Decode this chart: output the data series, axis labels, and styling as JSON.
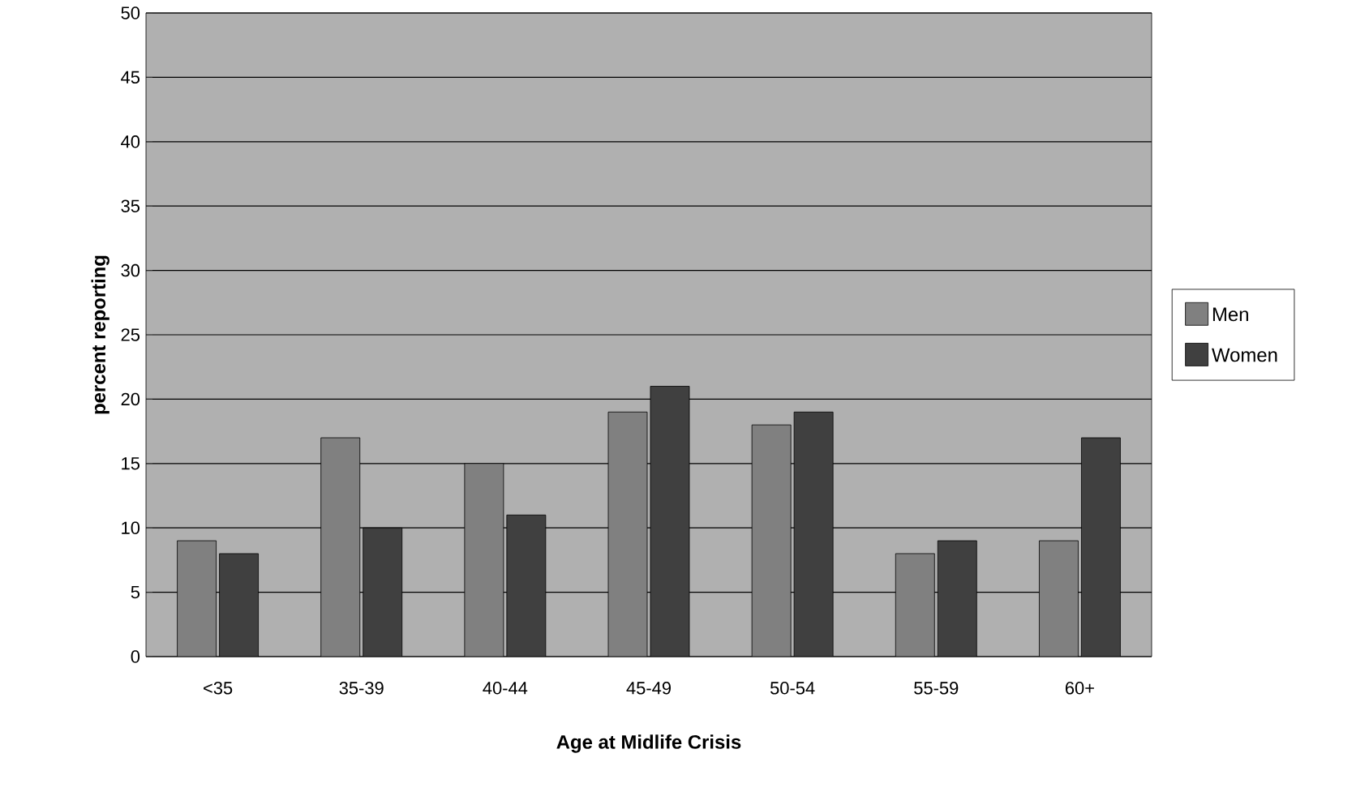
{
  "chart_data": {
    "type": "bar",
    "xlabel": "Age at Midlife Crisis",
    "ylabel": "percent reporting",
    "categories": [
      "<35",
      "35-39",
      "40-44",
      "45-49",
      "50-54",
      "55-59",
      "60+"
    ],
    "series": [
      {
        "name": "Men",
        "color": "#808080",
        "values": [
          9,
          17,
          15,
          19,
          18,
          8,
          9
        ]
      },
      {
        "name": "Women",
        "color": "#404040",
        "values": [
          8,
          10,
          11,
          21,
          19,
          9,
          17
        ]
      }
    ],
    "ylim": [
      0,
      50
    ],
    "yticks": [
      0,
      5,
      10,
      15,
      20,
      25,
      30,
      35,
      40,
      45,
      50
    ],
    "grid": "y",
    "legend": "right"
  }
}
